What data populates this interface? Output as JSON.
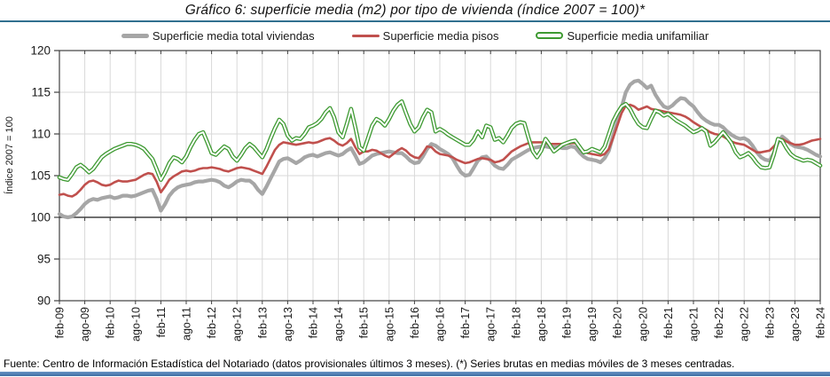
{
  "header": {
    "title": "Gráfico 6: superficie media (m2) por tipo de vivienda (índice 2007 = 100)*"
  },
  "legend": [
    {
      "label": "Superficie media total viviendas",
      "color": "#a6a6a6",
      "style": "thick"
    },
    {
      "label": "Superficie media pisos",
      "color": "#c0504d",
      "style": "solid"
    },
    {
      "label": "Superficie media unifamiliar",
      "color": "#3e9a32",
      "style": "double"
    }
  ],
  "footer": {
    "text": "Fuente: Centro de Información Estadística del Notariado (datos provisionales últimos 3 meses). (*) Series brutas en medias móviles de 3 meses centradas."
  },
  "colors": {
    "rule": "#31708f",
    "grid": "#d9d9d9",
    "axis": "#404040",
    "tick_text": "#1a1a1a",
    "background": "#ffffff"
  },
  "chart_data": {
    "type": "line",
    "title": "Gráfico 6: superficie media (m2) por tipo de vivienda (índice 2007 = 100)*",
    "xlabel": "",
    "ylabel": "Índice 2007 = 100",
    "ylim": [
      90,
      120
    ],
    "ytick_step": 5,
    "axis_cross_y": 100,
    "grid": true,
    "legend_position": "top",
    "x_months_per_tick": 6,
    "x_tick_labels": [
      "feb-09",
      "ago-09",
      "feb-10",
      "ago-10",
      "feb-11",
      "ago-11",
      "feb-12",
      "ago-12",
      "feb-13",
      "ago-13",
      "feb-14",
      "ago-14",
      "feb-15",
      "ago-15",
      "feb-16",
      "ago-16",
      "feb-17",
      "ago-17",
      "feb-18",
      "ago-18",
      "feb-19",
      "ago-19",
      "feb-20",
      "ago-20",
      "feb-21",
      "ago-21",
      "feb-22",
      "ago-22",
      "feb-23",
      "ago-23",
      "feb-24"
    ],
    "series": [
      {
        "name": "Superficie media total viviendas",
        "color": "#a6a6a6",
        "line_style": "thick",
        "values": [
          100.4,
          100.1,
          100.0,
          100.1,
          100.5,
          101.0,
          101.6,
          102.0,
          102.2,
          102.1,
          102.3,
          102.4,
          102.5,
          102.3,
          102.4,
          102.6,
          102.6,
          102.5,
          102.6,
          102.8,
          103.0,
          103.2,
          103.3,
          102.2,
          100.8,
          101.6,
          102.6,
          103.2,
          103.6,
          103.8,
          103.9,
          104.0,
          104.2,
          104.3,
          104.3,
          104.4,
          104.5,
          104.4,
          104.2,
          103.8,
          103.6,
          103.9,
          104.3,
          104.5,
          104.4,
          104.4,
          104.0,
          103.3,
          102.8,
          103.7,
          104.7,
          105.7,
          106.7,
          107.0,
          107.1,
          106.8,
          106.5,
          106.8,
          107.2,
          107.4,
          107.5,
          107.3,
          107.5,
          107.7,
          107.8,
          107.6,
          107.4,
          107.6,
          108.0,
          108.3,
          107.4,
          106.4,
          106.6,
          107.0,
          107.4,
          107.6,
          107.7,
          107.8,
          107.9,
          107.8,
          107.7,
          107.7,
          107.3,
          106.8,
          106.5,
          106.6,
          107.3,
          108.2,
          108.8,
          108.6,
          108.2,
          107.9,
          107.6,
          107.1,
          106.2,
          105.4,
          105.0,
          105.1,
          105.9,
          106.8,
          107.2,
          107.3,
          106.8,
          106.2,
          105.9,
          105.8,
          106.3,
          106.9,
          107.2,
          107.5,
          107.8,
          108.1,
          108.3,
          108.4,
          108.5,
          108.5,
          108.4,
          108.4,
          108.4,
          108.3,
          108.3,
          108.5,
          108.4,
          107.8,
          107.3,
          107.0,
          106.9,
          106.8,
          106.6,
          107.1,
          108.0,
          109.8,
          111.5,
          113.2,
          115.0,
          115.9,
          116.3,
          116.4,
          116.0,
          115.5,
          115.8,
          114.7,
          113.9,
          113.3,
          113.1,
          113.4,
          113.9,
          114.3,
          114.2,
          113.7,
          113.3,
          112.6,
          112.0,
          111.6,
          111.3,
          111.1,
          111.1,
          110.8,
          110.3,
          109.9,
          109.6,
          109.4,
          109.5,
          109.2,
          108.6,
          107.8,
          107.2,
          106.9,
          106.8,
          107.7,
          109.0,
          109.7,
          109.3,
          108.8,
          108.5,
          108.4,
          108.3,
          108.1,
          107.8,
          107.5,
          107.3
        ]
      },
      {
        "name": "Superficie media pisos",
        "color": "#c0504d",
        "line_style": "solid",
        "values": [
          102.7,
          102.8,
          102.6,
          102.5,
          102.8,
          103.3,
          103.9,
          104.3,
          104.4,
          104.2,
          103.9,
          103.8,
          103.9,
          104.2,
          104.4,
          104.3,
          104.3,
          104.4,
          104.5,
          104.8,
          105.1,
          105.3,
          105.2,
          104.3,
          103.0,
          103.7,
          104.5,
          104.9,
          105.2,
          105.5,
          105.6,
          105.5,
          105.6,
          105.8,
          105.9,
          105.9,
          106.0,
          105.9,
          105.8,
          105.6,
          105.5,
          105.7,
          105.9,
          106.0,
          105.9,
          105.8,
          105.6,
          105.4,
          105.2,
          106.1,
          107.1,
          108.1,
          108.7,
          109.0,
          108.9,
          108.8,
          108.7,
          108.8,
          108.9,
          109.0,
          108.9,
          109.0,
          109.2,
          109.4,
          109.5,
          109.2,
          108.8,
          108.6,
          108.9,
          109.4,
          108.4,
          107.6,
          107.9,
          107.9,
          108.1,
          108.0,
          107.7,
          107.4,
          107.2,
          107.6,
          108.0,
          108.3,
          108.0,
          107.5,
          107.2,
          107.1,
          107.7,
          108.5,
          108.4,
          107.9,
          107.6,
          107.5,
          107.4,
          107.2,
          106.9,
          106.7,
          106.5,
          106.6,
          106.8,
          107.0,
          107.1,
          107.0,
          106.9,
          106.6,
          106.7,
          106.9,
          107.4,
          107.9,
          108.2,
          108.5,
          108.7,
          108.9,
          109.0,
          109.0,
          109.0,
          108.9,
          108.8,
          108.8,
          108.8,
          108.8,
          108.8,
          108.9,
          108.9,
          108.5,
          108.0,
          107.7,
          107.6,
          107.5,
          107.4,
          107.6,
          108.2,
          109.5,
          111.0,
          112.5,
          113.4,
          113.5,
          113.3,
          112.9,
          113.1,
          113.3,
          113.0,
          112.9,
          112.8,
          112.7,
          112.6,
          112.5,
          112.4,
          112.3,
          112.1,
          111.8,
          111.4,
          111.1,
          110.8,
          110.5,
          110.2,
          110.0,
          109.9,
          109.7,
          109.4,
          109.1,
          108.9,
          108.8,
          108.7,
          108.4,
          108.1,
          107.8,
          107.8,
          107.9,
          108.0,
          108.5,
          109.1,
          109.4,
          109.1,
          108.9,
          108.7,
          108.7,
          108.8,
          109.0,
          109.2,
          109.3,
          109.4
        ]
      },
      {
        "name": "Superficie media unifamiliar",
        "color": "#3e9a32",
        "line_style": "double",
        "values": [
          104.8,
          104.6,
          104.5,
          105.2,
          106.0,
          106.3,
          105.9,
          105.4,
          105.8,
          106.5,
          107.2,
          107.6,
          107.9,
          108.2,
          108.4,
          108.6,
          108.8,
          108.8,
          108.7,
          108.5,
          108.2,
          107.6,
          107.0,
          105.8,
          104.5,
          105.4,
          106.5,
          107.2,
          107.0,
          106.6,
          107.3,
          108.4,
          109.3,
          110.0,
          110.2,
          109.0,
          107.7,
          107.5,
          108.0,
          108.5,
          108.2,
          107.3,
          106.8,
          107.5,
          108.3,
          108.8,
          108.4,
          107.8,
          107.2,
          108.2,
          109.5,
          110.7,
          111.7,
          111.2,
          109.8,
          109.2,
          109.5,
          109.4,
          110.0,
          110.8,
          111.0,
          111.3,
          111.8,
          112.6,
          113.1,
          112.0,
          110.2,
          109.6,
          111.2,
          113.0,
          110.8,
          108.4,
          108.0,
          109.5,
          111.0,
          111.8,
          111.5,
          111.0,
          111.8,
          112.8,
          113.5,
          113.9,
          112.5,
          111.2,
          110.3,
          110.8,
          112.0,
          112.9,
          112.6,
          110.3,
          110.6,
          110.3,
          109.9,
          109.6,
          109.3,
          109.0,
          108.7,
          108.7,
          109.3,
          110.3,
          109.6,
          111.0,
          110.8,
          109.3,
          109.5,
          109.0,
          109.8,
          110.7,
          111.2,
          111.4,
          111.3,
          109.5,
          107.9,
          107.2,
          108.0,
          109.4,
          108.7,
          107.9,
          108.3,
          108.7,
          108.9,
          109.1,
          109.2,
          108.5,
          107.8,
          107.9,
          108.2,
          108.0,
          107.8,
          108.5,
          110.0,
          111.5,
          112.5,
          113.3,
          113.6,
          113.0,
          112.0,
          111.2,
          110.8,
          110.7,
          111.8,
          112.8,
          112.6,
          112.2,
          112.4,
          112.0,
          111.6,
          111.3,
          111.0,
          110.6,
          110.2,
          110.4,
          110.7,
          110.3,
          108.6,
          109.0,
          109.6,
          110.2,
          109.6,
          108.9,
          107.8,
          107.2,
          107.4,
          107.7,
          107.2,
          106.5,
          106.0,
          105.9,
          106.0,
          107.5,
          109.4,
          109.2,
          108.3,
          107.6,
          107.2,
          107.0,
          106.8,
          106.9,
          106.8,
          106.5,
          106.2
        ]
      }
    ]
  }
}
